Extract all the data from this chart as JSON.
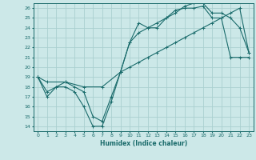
{
  "xlabel": "Humidex (Indice chaleur)",
  "xlim": [
    -0.5,
    23.5
  ],
  "ylim": [
    13.5,
    26.5
  ],
  "xticks": [
    0,
    1,
    2,
    3,
    4,
    5,
    6,
    7,
    8,
    9,
    10,
    11,
    12,
    13,
    14,
    15,
    16,
    17,
    18,
    19,
    20,
    21,
    22,
    23
  ],
  "yticks": [
    14,
    15,
    16,
    17,
    18,
    19,
    20,
    21,
    22,
    23,
    24,
    25,
    26
  ],
  "bg_color": "#cce8e8",
  "grid_color": "#aad0d0",
  "line_color": "#1a6b6b",
  "line1_x": [
    0,
    1,
    2,
    3,
    4,
    5,
    6,
    7,
    8,
    9,
    10,
    11,
    12,
    13,
    14,
    15,
    16,
    17,
    18,
    19,
    20,
    21,
    22,
    23
  ],
  "line1_y": [
    19,
    17,
    18,
    18,
    17.5,
    16,
    14,
    14,
    16.5,
    19.5,
    22.5,
    24.5,
    24,
    24,
    25,
    25.8,
    26,
    26,
    26.2,
    25.0,
    25.0,
    21.0,
    21.0,
    21.0
  ],
  "line2_x": [
    0,
    1,
    2,
    3,
    4,
    5,
    6,
    7,
    8,
    9,
    10,
    11,
    12,
    13,
    14,
    15,
    16,
    17,
    18,
    19,
    20,
    21,
    22,
    23
  ],
  "line2_y": [
    19,
    17.5,
    18,
    18.5,
    18.0,
    17.5,
    15,
    14.5,
    17,
    19.5,
    22.5,
    23.5,
    24,
    24.5,
    25,
    25.5,
    26.2,
    26.5,
    26.5,
    25.5,
    25.5,
    25.0,
    24.0,
    21.5
  ],
  "line3_x": [
    0,
    1,
    3,
    5,
    7,
    9,
    10,
    11,
    12,
    13,
    14,
    15,
    16,
    17,
    18,
    19,
    20,
    21,
    22,
    23
  ],
  "line3_y": [
    19,
    18.5,
    18.5,
    18.0,
    18.0,
    19.5,
    20,
    20.5,
    21,
    21.5,
    22,
    22.5,
    23,
    23.5,
    24,
    24.5,
    25,
    25.5,
    26.0,
    21.5
  ]
}
